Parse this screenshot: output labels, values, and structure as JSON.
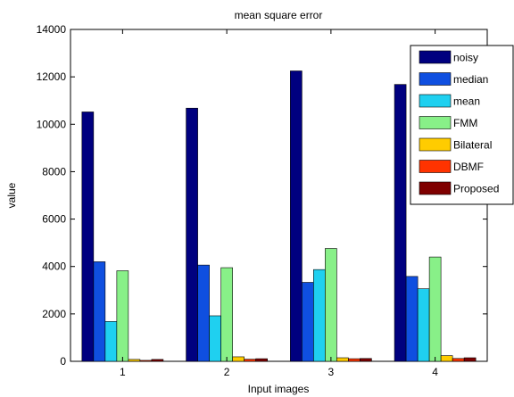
{
  "chart_data": {
    "type": "bar",
    "title": "mean square error",
    "xlabel": "Input images",
    "ylabel": "value",
    "categories": [
      "1",
      "2",
      "3",
      "4"
    ],
    "ylim": [
      0,
      14000
    ],
    "yticks": [
      0,
      2000,
      4000,
      6000,
      8000,
      10000,
      12000,
      14000
    ],
    "yticklabels": [
      "0",
      "2000",
      "4000",
      "6000",
      "8000",
      "10000",
      "12000",
      "14000"
    ],
    "grid": false,
    "legend_position": "top-right",
    "series": [
      {
        "name": "noisy",
        "color": "#00007f",
        "values": [
          10520,
          10680,
          12250,
          11680
        ]
      },
      {
        "name": "median",
        "color": "#0f4fe0",
        "values": [
          4200,
          4060,
          3330,
          3580
        ]
      },
      {
        "name": "mean",
        "color": "#1fd0f0",
        "values": [
          1680,
          1920,
          3870,
          3060
        ]
      },
      {
        "name": "FMM",
        "color": "#88f088",
        "values": [
          3820,
          3950,
          4760,
          4400
        ]
      },
      {
        "name": "Bilateral",
        "color": "#ffcc00",
        "values": [
          80,
          190,
          150,
          240
        ]
      },
      {
        "name": "DBMF",
        "color": "#ff3300",
        "values": [
          40,
          90,
          110,
          120
        ]
      },
      {
        "name": "Proposed",
        "color": "#7f0000",
        "values": [
          80,
          110,
          120,
          150
        ]
      }
    ]
  }
}
